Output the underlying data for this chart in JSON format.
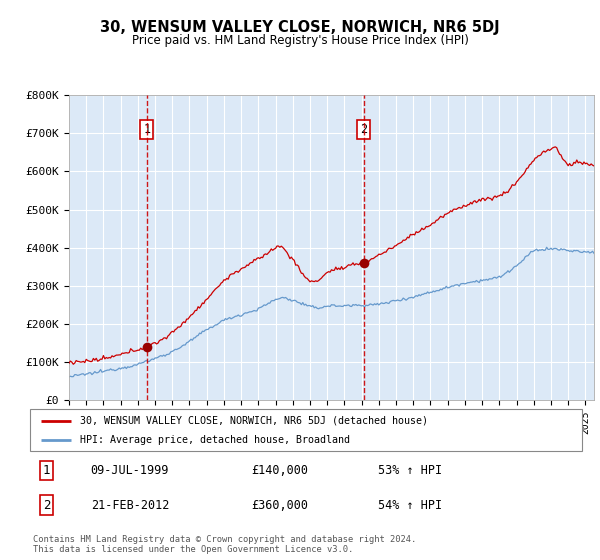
{
  "title": "30, WENSUM VALLEY CLOSE, NORWICH, NR6 5DJ",
  "subtitle": "Price paid vs. HM Land Registry's House Price Index (HPI)",
  "background_color": "#dce9f7",
  "plot_bg_color": "#dce9f7",
  "ylim": [
    0,
    800000
  ],
  "yticks": [
    0,
    100000,
    200000,
    300000,
    400000,
    500000,
    600000,
    700000,
    800000
  ],
  "ytick_labels": [
    "£0",
    "£100K",
    "£200K",
    "£300K",
    "£400K",
    "£500K",
    "£600K",
    "£700K",
    "£800K"
  ],
  "sale1_date": 1999.53,
  "sale1_price": 140000,
  "sale1_label": "1",
  "sale1_text": "09-JUL-1999",
  "sale1_amount": "£140,000",
  "sale1_hpi": "53% ↑ HPI",
  "sale2_date": 2012.13,
  "sale2_price": 360000,
  "sale2_label": "2",
  "sale2_text": "21-FEB-2012",
  "sale2_amount": "£360,000",
  "sale2_hpi": "54% ↑ HPI",
  "legend_line1": "30, WENSUM VALLEY CLOSE, NORWICH, NR6 5DJ (detached house)",
  "legend_line2": "HPI: Average price, detached house, Broadland",
  "footer": "Contains HM Land Registry data © Crown copyright and database right 2024.\nThis data is licensed under the Open Government Licence v3.0.",
  "line_color_red": "#cc0000",
  "line_color_blue": "#6699cc",
  "xmin": 1995.0,
  "xmax": 2025.5
}
